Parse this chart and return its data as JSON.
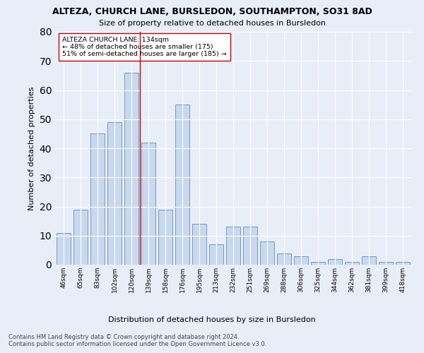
{
  "title": "ALTEZA, CHURCH LANE, BURSLEDON, SOUTHAMPTON, SO31 8AD",
  "subtitle": "Size of property relative to detached houses in Bursledon",
  "xlabel_bottom": "Distribution of detached houses by size in Bursledon",
  "ylabel": "Number of detached properties",
  "footer_line1": "Contains HM Land Registry data © Crown copyright and database right 2024.",
  "footer_line2": "Contains public sector information licensed under the Open Government Licence v3.0.",
  "categories": [
    "46sqm",
    "65sqm",
    "83sqm",
    "102sqm",
    "120sqm",
    "139sqm",
    "158sqm",
    "176sqm",
    "195sqm",
    "213sqm",
    "232sqm",
    "251sqm",
    "269sqm",
    "288sqm",
    "306sqm",
    "325sqm",
    "344sqm",
    "362sqm",
    "381sqm",
    "399sqm",
    "418sqm"
  ],
  "values": [
    11,
    19,
    45,
    49,
    66,
    42,
    19,
    55,
    14,
    7,
    13,
    13,
    8,
    4,
    3,
    1,
    2,
    1,
    3,
    1,
    1
  ],
  "bar_color": "#c8d8ee",
  "bar_edge_color": "#7799bb",
  "highlight_color": "#cc0000",
  "highlight_index": 4,
  "annotation_text_line1": "ALTEZA CHURCH LANE: 134sqm",
  "annotation_text_line2": "← 48% of detached houses are smaller (175)",
  "annotation_text_line3": "51% of semi-detached houses are larger (185) →",
  "annotation_box_color": "#ffffff",
  "annotation_box_edge": "#cc0000",
  "ylim": [
    0,
    80
  ],
  "yticks": [
    0,
    10,
    20,
    30,
    40,
    50,
    60,
    70,
    80
  ],
  "background_color": "#e8eef8",
  "plot_bg_color": "#e8eef8",
  "grid_color": "#ffffff"
}
